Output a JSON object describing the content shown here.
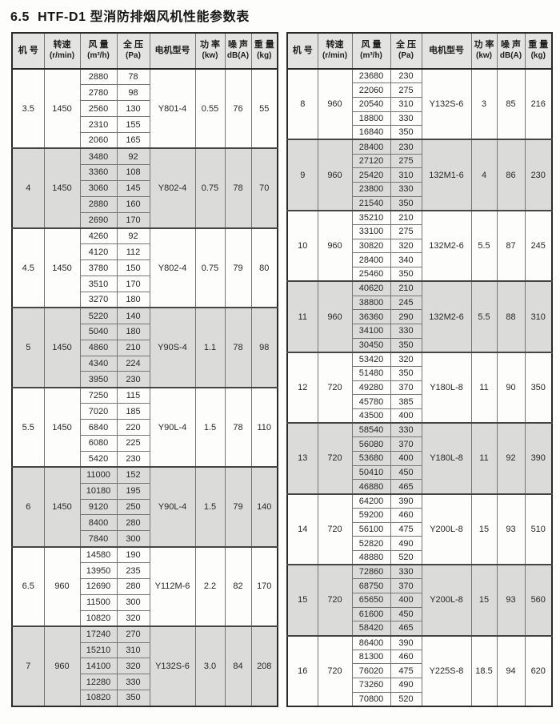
{
  "page_title": "6.5  HTF-D1 型消防排烟风机性能参数表",
  "columns": [
    {
      "label": "机 号",
      "sub": ""
    },
    {
      "label": "转速",
      "sub": "(r/min)"
    },
    {
      "label": "风 量",
      "sub": "(m³/h)"
    },
    {
      "label": "全 压",
      "sub": "(Pa)"
    },
    {
      "label": "电机型号",
      "sub": ""
    },
    {
      "label": "功 率",
      "sub": "(kw)"
    },
    {
      "label": "噪 声",
      "sub": "dB(A)"
    },
    {
      "label": "重 量",
      "sub": "(kg)"
    }
  ],
  "colors": {
    "header_bg": "#e3e3e1",
    "shaded_bg": "#dbdbd9",
    "row_bg": "#fdfdfc",
    "border_dark": "#2a2a2a",
    "border_light": "#767676"
  },
  "tables": [
    {
      "name": "left",
      "groups": [
        {
          "fan_no": "3.5",
          "speed": "1450",
          "rows": [
            [
              "2880",
              "78"
            ],
            [
              "2780",
              "98"
            ],
            [
              "2560",
              "130"
            ],
            [
              "2310",
              "155"
            ],
            [
              "2060",
              "165"
            ]
          ],
          "motor": "Y801-4",
          "power": "0.55",
          "noise": "76",
          "weight": "55"
        },
        {
          "fan_no": "4",
          "speed": "1450",
          "rows": [
            [
              "3480",
              "92"
            ],
            [
              "3360",
              "108"
            ],
            [
              "3060",
              "145"
            ],
            [
              "2880",
              "160"
            ],
            [
              "2690",
              "170"
            ]
          ],
          "motor": "Y802-4",
          "power": "0.75",
          "noise": "78",
          "weight": "70"
        },
        {
          "fan_no": "4.5",
          "speed": "1450",
          "rows": [
            [
              "4260",
              "92"
            ],
            [
              "4120",
              "112"
            ],
            [
              "3780",
              "150"
            ],
            [
              "3510",
              "170"
            ],
            [
              "3270",
              "180"
            ]
          ],
          "motor": "Y802-4",
          "power": "0.75",
          "noise": "79",
          "weight": "80"
        },
        {
          "fan_no": "5",
          "speed": "1450",
          "rows": [
            [
              "5220",
              "140"
            ],
            [
              "5040",
              "180"
            ],
            [
              "4860",
              "210"
            ],
            [
              "4340",
              "224"
            ],
            [
              "3950",
              "230"
            ]
          ],
          "motor": "Y90S-4",
          "power": "1.1",
          "noise": "78",
          "weight": "98"
        },
        {
          "fan_no": "5.5",
          "speed": "1450",
          "rows": [
            [
              "7250",
              "115"
            ],
            [
              "7020",
              "185"
            ],
            [
              "6840",
              "220"
            ],
            [
              "6080",
              "225"
            ],
            [
              "5420",
              "230"
            ]
          ],
          "motor": "Y90L-4",
          "power": "1.5",
          "noise": "78",
          "weight": "110"
        },
        {
          "fan_no": "6",
          "speed": "1450",
          "rows": [
            [
              "11000",
              "152"
            ],
            [
              "10180",
              "195"
            ],
            [
              "9120",
              "250"
            ],
            [
              "8400",
              "280"
            ],
            [
              "7840",
              "300"
            ]
          ],
          "motor": "Y90L-4",
          "power": "1.5",
          "noise": "79",
          "weight": "140"
        },
        {
          "fan_no": "6.5",
          "speed": "960",
          "rows": [
            [
              "14580",
              "190"
            ],
            [
              "13950",
              "235"
            ],
            [
              "12690",
              "280"
            ],
            [
              "11500",
              "300"
            ],
            [
              "10820",
              "320"
            ]
          ],
          "motor": "Y112M-6",
          "power": "2.2",
          "noise": "82",
          "weight": "170"
        },
        {
          "fan_no": "7",
          "speed": "960",
          "rows": [
            [
              "17240",
              "270"
            ],
            [
              "15210",
              "310"
            ],
            [
              "14100",
              "320"
            ],
            [
              "12280",
              "330"
            ],
            [
              "10820",
              "350"
            ]
          ],
          "motor": "Y132S-6",
          "power": "3.0",
          "noise": "84",
          "weight": "208"
        }
      ]
    },
    {
      "name": "right",
      "groups": [
        {
          "fan_no": "8",
          "speed": "960",
          "rows": [
            [
              "23680",
              "230"
            ],
            [
              "22060",
              "275"
            ],
            [
              "20540",
              "310"
            ],
            [
              "18800",
              "330"
            ],
            [
              "16840",
              "350"
            ]
          ],
          "motor": "Y132S-6",
          "power": "3",
          "noise": "85",
          "weight": "216"
        },
        {
          "fan_no": "9",
          "speed": "960",
          "rows": [
            [
              "28400",
              "230"
            ],
            [
              "27120",
              "275"
            ],
            [
              "25420",
              "310"
            ],
            [
              "23800",
              "330"
            ],
            [
              "21540",
              "350"
            ]
          ],
          "motor": "132M1-6",
          "power": "4",
          "noise": "86",
          "weight": "230"
        },
        {
          "fan_no": "10",
          "speed": "960",
          "rows": [
            [
              "35210",
              "210"
            ],
            [
              "33100",
              "275"
            ],
            [
              "30820",
              "320"
            ],
            [
              "28400",
              "340"
            ],
            [
              "25460",
              "350"
            ]
          ],
          "motor": "132M2-6",
          "power": "5.5",
          "noise": "87",
          "weight": "245"
        },
        {
          "fan_no": "11",
          "speed": "960",
          "rows": [
            [
              "40620",
              "210"
            ],
            [
              "38800",
              "245"
            ],
            [
              "36360",
              "290"
            ],
            [
              "34100",
              "330"
            ],
            [
              "30450",
              "350"
            ]
          ],
          "motor": "132M2-6",
          "power": "5.5",
          "noise": "88",
          "weight": "310"
        },
        {
          "fan_no": "12",
          "speed": "720",
          "rows": [
            [
              "53420",
              "320"
            ],
            [
              "51480",
              "350"
            ],
            [
              "49280",
              "370"
            ],
            [
              "45780",
              "385"
            ],
            [
              "43500",
              "400"
            ]
          ],
          "motor": "Y180L-8",
          "power": "11",
          "noise": "90",
          "weight": "350"
        },
        {
          "fan_no": "13",
          "speed": "720",
          "rows": [
            [
              "58540",
              "330"
            ],
            [
              "56080",
              "370"
            ],
            [
              "53680",
              "400"
            ],
            [
              "50410",
              "450"
            ],
            [
              "46880",
              "465"
            ]
          ],
          "motor": "Y180L-8",
          "power": "11",
          "noise": "92",
          "weight": "390"
        },
        {
          "fan_no": "14",
          "speed": "720",
          "rows": [
            [
              "64200",
              "390"
            ],
            [
              "59200",
              "460"
            ],
            [
              "56100",
              "475"
            ],
            [
              "52820",
              "490"
            ],
            [
              "48880",
              "520"
            ]
          ],
          "motor": "Y200L-8",
          "power": "15",
          "noise": "93",
          "weight": "510"
        },
        {
          "fan_no": "15",
          "speed": "720",
          "rows": [
            [
              "72860",
              "330"
            ],
            [
              "68750",
              "370"
            ],
            [
              "65650",
              "400"
            ],
            [
              "61600",
              "450"
            ],
            [
              "58420",
              "465"
            ]
          ],
          "motor": "Y200L-8",
          "power": "15",
          "noise": "93",
          "weight": "560"
        },
        {
          "fan_no": "16",
          "speed": "720",
          "rows": [
            [
              "86400",
              "390"
            ],
            [
              "81300",
              "460"
            ],
            [
              "76020",
              "475"
            ],
            [
              "73260",
              "490"
            ],
            [
              "70800",
              "520"
            ]
          ],
          "motor": "Y225S-8",
          "power": "18.5",
          "noise": "94",
          "weight": "620"
        }
      ]
    }
  ]
}
